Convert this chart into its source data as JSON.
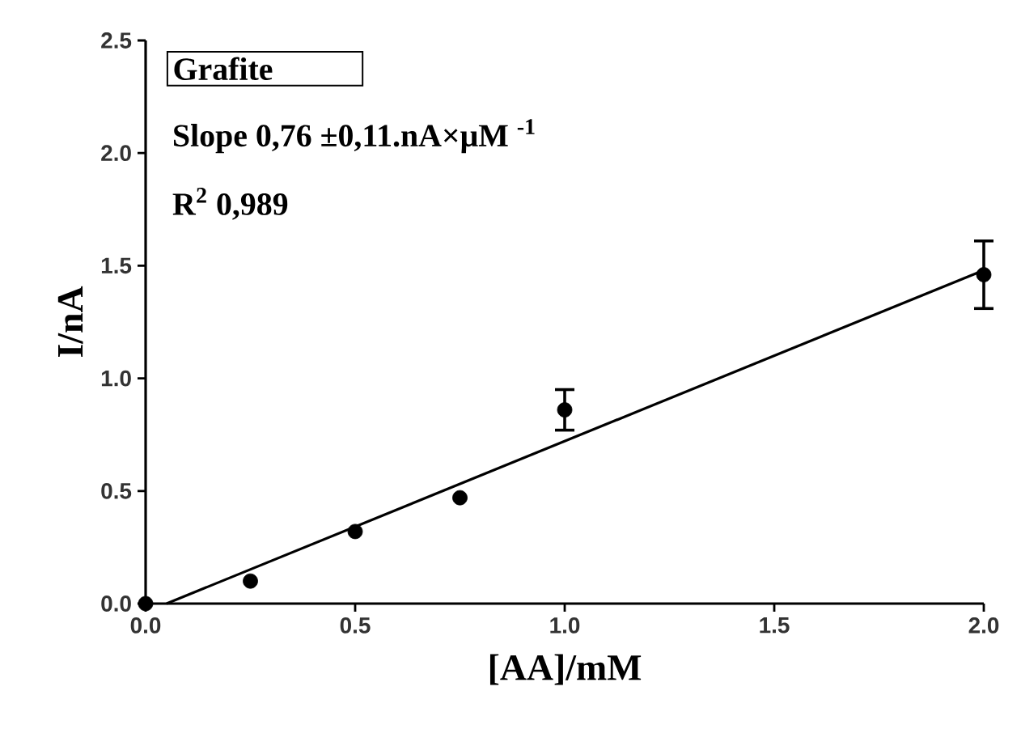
{
  "chart_data": {
    "type": "scatter",
    "xlabel": "[AA]/mM",
    "ylabel": "I/nA",
    "annotations": [
      "Grafite",
      "**Slope** 0,76 ±0,11.nA×μM $^{-1}$",
      "**R**$^{2}$ 0,989"
    ],
    "series": [
      {
        "color": "#000000",
        "marker": "circle",
        "x": [
          0,
          0.25,
          0.5,
          0.75,
          1.0,
          2.0
        ],
        "values": [
          0,
          0.1,
          0.32,
          0.47,
          0.86,
          1.46
        ],
        "errors": [
          null,
          null,
          null,
          null,
          0.09,
          0.15
        ]
      },
      {
        "type": "line",
        "color": "#000000",
        "line_style": "solid",
        "marker": "none",
        "x": [
          0.05,
          2.0
        ],
        "values": [
          0,
          1.48
        ]
      }
    ],
    "xlim": [
      0,
      2
    ],
    "ylim": [
      0,
      2.5
    ],
    "xticks": [
      {
        "value": 0,
        "label": "0.0"
      },
      {
        "value": 0.5,
        "label": "0.5"
      },
      {
        "value": 1,
        "label": "1.0"
      },
      {
        "value": 1.5,
        "label": "1.5"
      },
      {
        "value": 2,
        "label": "2.0"
      }
    ],
    "yticks": [
      {
        "value": 0,
        "label": "0.0"
      },
      {
        "value": 0.5,
        "label": "0.5"
      },
      {
        "value": 1,
        "label": "1.0"
      },
      {
        "value": 1.5,
        "label": "1.5"
      },
      {
        "value": 2,
        "label": "2.0"
      },
      {
        "value": 2.5,
        "label": "2.5"
      }
    ],
    "grid": false
  }
}
